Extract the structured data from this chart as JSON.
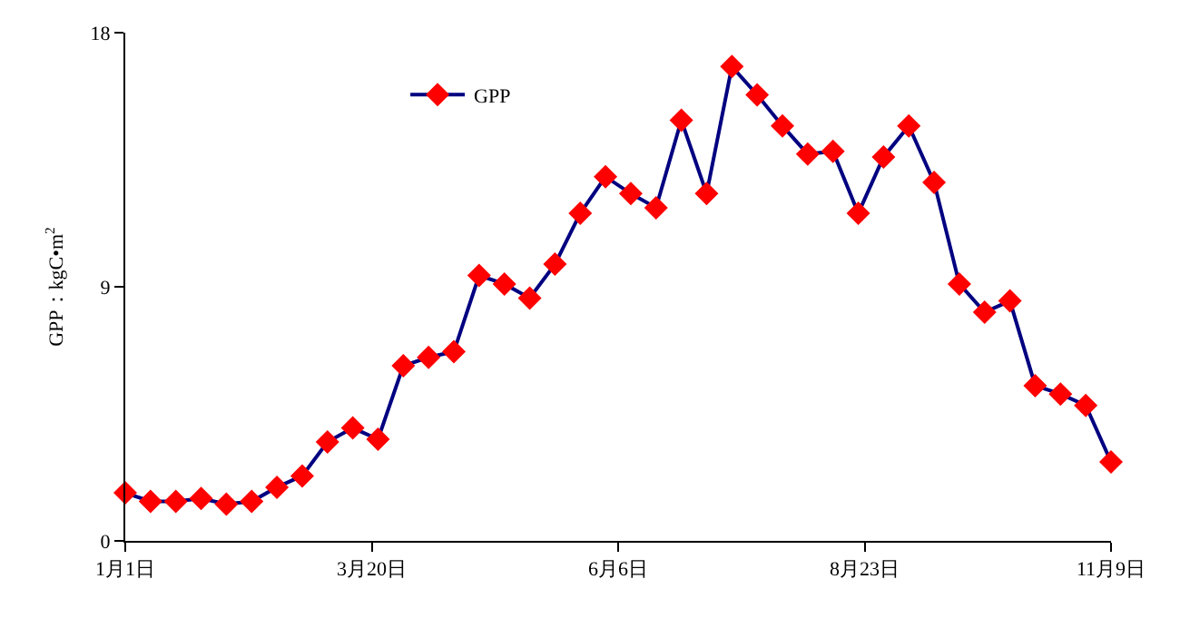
{
  "chart_data": {
    "type": "line",
    "ylabel": "GPP：kgC•m$^{2}$",
    "x": [
      "--01-01",
      "--01-09",
      "--01-17",
      "--01-25",
      "--02-02",
      "--02-10",
      "--02-18",
      "--02-26",
      "--03-06",
      "--03-14",
      "--03-22",
      "--03-30",
      "--04-07",
      "--04-15",
      "--04-23",
      "--05-01",
      "--05-09",
      "--05-17",
      "--05-25",
      "--06-02",
      "--06-10",
      "--06-18",
      "--06-26",
      "--07-04",
      "--07-12",
      "--07-20",
      "--07-28",
      "--08-05",
      "--08-13",
      "--08-21",
      "--08-29",
      "--09-06",
      "--09-14",
      "--09-22",
      "--09-30",
      "--10-08",
      "--10-16",
      "--10-24",
      "--11-01",
      "--11-09"
    ],
    "series": [
      {
        "name": "GPP",
        "color": "#000080",
        "colors": [
          "#ff0000",
          "#ff0000",
          "#ff0000",
          "#ff0000",
          "#ff0000",
          "#ff0000",
          "#ff0000",
          "#ff0000",
          "#ff0000",
          "#ff0000",
          "#ff0000",
          "#ff0000",
          "#ff0000",
          "#ff0000",
          "#ff0000",
          "#ff0000",
          "#ff0000",
          "#ff0000",
          "#ff0000",
          "#ff0000",
          "#ff0000",
          "#ff0000",
          "#ff0000",
          "#ff0000",
          "#ff0000",
          "#ff0000",
          "#ff0000",
          "#ff0000",
          "#ff0000",
          "#ff0000",
          "#ff0000",
          "#ff0000",
          "#ff0000",
          "#ff0000",
          "#ff0000",
          "#ff0000",
          "#ff0000",
          "#ff0000",
          "#ff0000",
          "#ff0000"
        ],
        "values": [
          1.7,
          1.4,
          1.4,
          1.5,
          1.3,
          1.4,
          1.9,
          2.3,
          3.5,
          4.0,
          3.6,
          6.2,
          6.5,
          6.7,
          9.4,
          9.1,
          8.6,
          9.8,
          11.6,
          12.9,
          12.3,
          11.8,
          14.9,
          12.3,
          16.8,
          15.8,
          14.7,
          13.7,
          13.8,
          11.6,
          13.6,
          14.7,
          12.7,
          9.1,
          8.1,
          8.5,
          5.5,
          5.2,
          4.8,
          2.8
        ]
      }
    ],
    "xlim": [
      "--01-01",
      "--11-09"
    ],
    "xticks": [
      {
        "value": "--01-01",
        "label": "1月1日"
      },
      {
        "value": "--03-20",
        "label": "3月20日"
      },
      {
        "value": "--06-06",
        "label": "6月6日"
      },
      {
        "value": "--08-23",
        "label": "8月23日"
      },
      {
        "value": "--11-09",
        "label": "11月9日"
      }
    ],
    "ylim": [
      0,
      18
    ],
    "yticks": [
      0,
      9,
      18
    ],
    "grid": false,
    "legend": "top left",
    "marker": "diamond",
    "line_style": "solid"
  }
}
